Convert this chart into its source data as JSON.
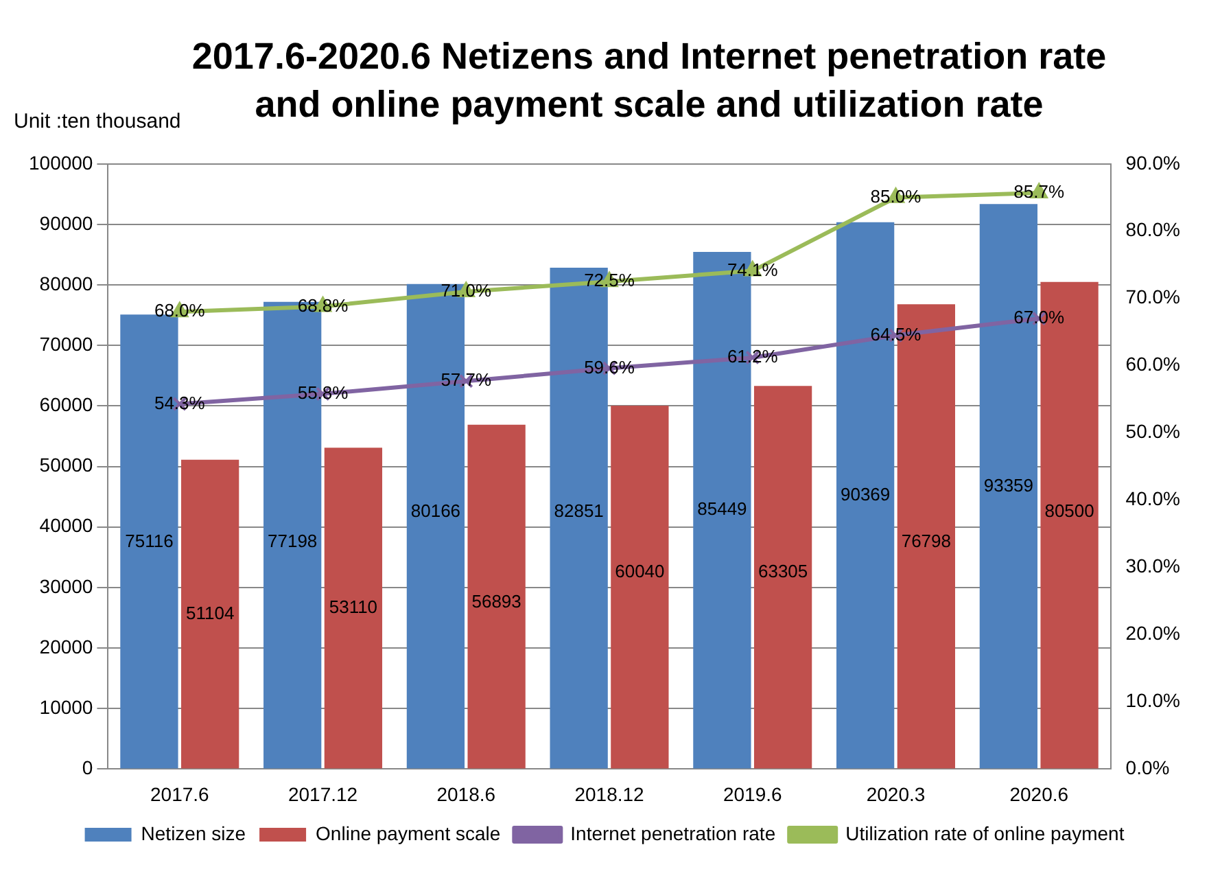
{
  "chart_data": {
    "type": "bar",
    "title": "2017.6-2020.6 Netizens and Internet penetration rate and online payment scale and utilization rate",
    "ylabel": "Unit :ten thousand",
    "categories": [
      "2017.6",
      "2017.12",
      "2018.6",
      "2018.12",
      "2019.6",
      "2020.3",
      "2020.6"
    ],
    "series": [
      {
        "name": "Netizen size",
        "color": "#4f81bd",
        "values": [
          75116,
          77198,
          80166,
          82851,
          85449,
          90369,
          93359
        ],
        "value_labels": [
          "75116",
          "77198",
          "80166",
          "82851",
          "85449",
          "90369",
          "93359"
        ]
      },
      {
        "name": "Online payment scale",
        "color": "#c0504d",
        "values": [
          51104,
          53110,
          56893,
          60040,
          63305,
          76798,
          80500
        ],
        "value_labels": [
          "51104",
          "53110",
          "56893",
          "60040",
          "63305",
          "76798",
          "80500"
        ]
      },
      {
        "name": "Internet penetration rate",
        "type": "line",
        "axis": "y2",
        "color": "#8064a2",
        "marker": "cross",
        "values": [
          54.3,
          55.8,
          57.7,
          59.6,
          61.2,
          64.5,
          67.0
        ],
        "value_labels": [
          "54.3%",
          "55.8%",
          "57.7%",
          "59.6%",
          "61.2%",
          "64.5%",
          "67.0%"
        ]
      },
      {
        "name": "Utilization rate of online payment",
        "type": "line",
        "axis": "y2",
        "color": "#9bbb59",
        "marker": "triangle",
        "values": [
          68.0,
          68.8,
          71.0,
          72.5,
          74.1,
          85.0,
          85.7
        ],
        "value_labels": [
          "68.0%",
          "68.8%",
          "71.0%",
          "72.5%",
          "74.1%",
          "85.0%",
          "85.7%"
        ]
      }
    ],
    "ylim": [
      0,
      100000
    ],
    "yticks": [
      0,
      10000,
      20000,
      30000,
      40000,
      50000,
      60000,
      70000,
      80000,
      90000,
      100000
    ],
    "y2lim": [
      0,
      90
    ],
    "y2ticks": [
      {
        "value": 0,
        "label": "0.0%"
      },
      {
        "value": 10,
        "label": "10.0%"
      },
      {
        "value": 20,
        "label": "20.0%"
      },
      {
        "value": 30,
        "label": "30.0%"
      },
      {
        "value": 40,
        "label": "40.0%"
      },
      {
        "value": 50,
        "label": "50.0%"
      },
      {
        "value": 60,
        "label": "60.0%"
      },
      {
        "value": 70,
        "label": "70.0%"
      },
      {
        "value": 80,
        "label": "80.0%"
      },
      {
        "value": 90,
        "label": "90.0%"
      }
    ],
    "grid": "y",
    "legend": "bottom",
    "line_style": "solid"
  }
}
